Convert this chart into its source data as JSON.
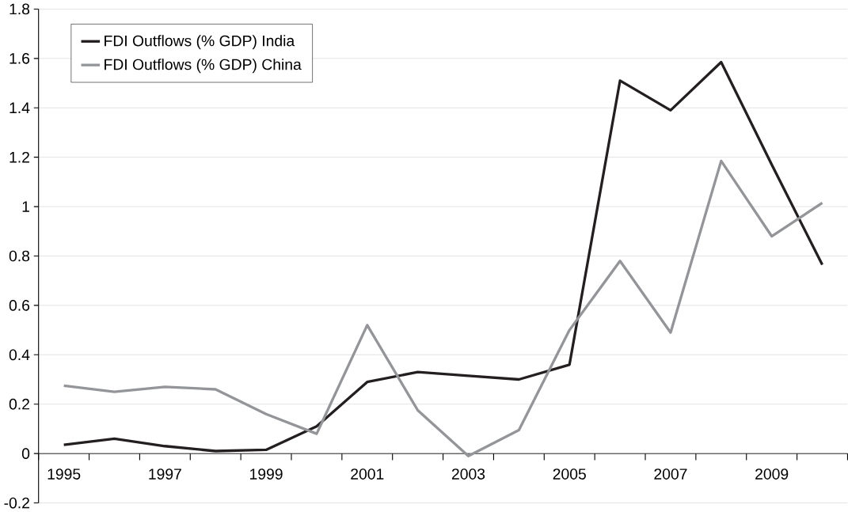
{
  "chart_data": {
    "type": "line",
    "categories": [
      "1995",
      null,
      "1997",
      null,
      "1999",
      null,
      "2001",
      null,
      "2003",
      null,
      "2005",
      null,
      "2007",
      null,
      "2009",
      null
    ],
    "series": [
      {
        "name": "FDI Outflows (% GDP) India",
        "color": "#231f20",
        "values": [
          0.035,
          0.06,
          0.03,
          0.01,
          0.015,
          0.11,
          0.29,
          0.33,
          0.315,
          0.3,
          0.36,
          1.51,
          1.39,
          1.585,
          1.17,
          0.765
        ]
      },
      {
        "name": "FDI Outflows (% GDP) China",
        "color": "#939598",
        "values": [
          0.275,
          0.25,
          0.27,
          0.26,
          0.16,
          0.08,
          0.52,
          0.175,
          -0.01,
          0.095,
          0.5,
          0.78,
          0.49,
          1.185,
          0.88,
          1.015
        ]
      }
    ],
    "ylim": [
      -0.2,
      1.8
    ],
    "yticks": [
      -0.2,
      0,
      0.2,
      0.4,
      0.6,
      0.8,
      1,
      1.2,
      1.4,
      1.6,
      1.8
    ],
    "grid": "y",
    "legend": "top left",
    "marker": "none",
    "line_style": "solid"
  }
}
